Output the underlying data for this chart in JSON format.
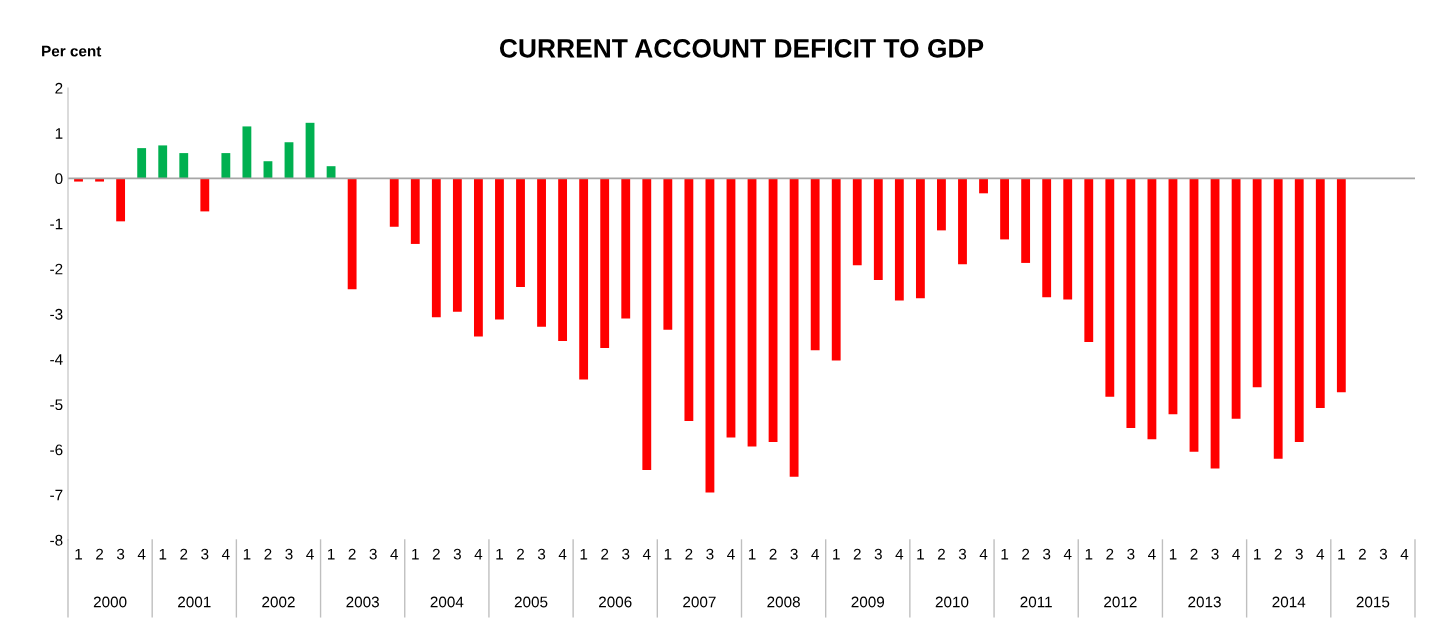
{
  "chart_data": {
    "type": "bar",
    "title": "CURRENT ACCOUNT DEFICIT TO GDP",
    "ylabel": "Per cent",
    "categories": [
      "1",
      "2",
      "3",
      "4",
      "1",
      "2",
      "3",
      "4",
      "1",
      "2",
      "3",
      "4",
      "1",
      "2",
      "3",
      "4",
      "1",
      "2",
      "3",
      "4",
      "1",
      "2",
      "3",
      "4",
      "1",
      "2",
      "3",
      "4",
      "1",
      "2",
      "3",
      "4",
      "1",
      "2",
      "3",
      "4",
      "1",
      "2",
      "3",
      "4",
      "1",
      "2",
      "3",
      "4",
      "1",
      "2",
      "3",
      "4",
      "1",
      "2",
      "3",
      "4",
      "1",
      "2",
      "3",
      "4",
      "1",
      "2",
      "3",
      "4",
      "1",
      "2",
      "3",
      "4"
    ],
    "annotations": [
      "2000",
      "2001",
      "2002",
      "2003",
      "2004",
      "2005",
      "2006",
      "2007",
      "2008",
      "2009",
      "2010",
      "2011",
      "2012",
      "2013",
      "2014",
      "2015"
    ],
    "values": [
      -0.07,
      -0.07,
      -0.95,
      0.67,
      0.73,
      0.56,
      -0.73,
      0.56,
      1.15,
      0.38,
      0.8,
      1.23,
      0.27,
      -2.45,
      null,
      -1.07,
      -1.45,
      -3.07,
      -2.95,
      -3.5,
      -3.12,
      -2.4,
      -3.28,
      -3.6,
      -4.45,
      -3.75,
      -3.1,
      -6.45,
      -3.35,
      -5.37,
      -6.95,
      -5.73,
      -5.93,
      -5.83,
      -6.6,
      -3.8,
      -4.03,
      -1.92,
      -2.25,
      -2.7,
      -2.65,
      -1.15,
      -1.9,
      -0.33,
      -1.35,
      -1.87,
      -2.63,
      -2.68,
      -3.62,
      -4.83,
      -5.52,
      -5.77,
      -5.22,
      -6.05,
      -6.42,
      -5.32,
      -4.62,
      -6.2,
      -5.83,
      -5.08,
      -4.73,
      null,
      null,
      null
    ],
    "colors": [
      "#ff0000",
      "#ff0000",
      "#ff0000",
      "#00b050",
      "#00b050",
      "#00b050",
      "#ff0000",
      "#00b050",
      "#00b050",
      "#00b050",
      "#00b050",
      "#00b050",
      "#00b050",
      "#ff0000",
      "#ff0000",
      "#ff0000",
      "#ff0000",
      "#ff0000",
      "#ff0000",
      "#ff0000",
      "#ff0000",
      "#ff0000",
      "#ff0000",
      "#ff0000",
      "#ff0000",
      "#ff0000",
      "#ff0000",
      "#ff0000",
      "#ff0000",
      "#ff0000",
      "#ff0000",
      "#ff0000",
      "#ff0000",
      "#ff0000",
      "#ff0000",
      "#ff0000",
      "#ff0000",
      "#ff0000",
      "#ff0000",
      "#ff0000",
      "#ff0000",
      "#ff0000",
      "#ff0000",
      "#ff0000",
      "#ff0000",
      "#ff0000",
      "#ff0000",
      "#ff0000",
      "#ff0000",
      "#ff0000",
      "#ff0000",
      "#ff0000",
      "#ff0000",
      "#ff0000",
      "#ff0000",
      "#ff0000",
      "#ff0000",
      "#ff0000",
      "#ff0000",
      "#ff0000",
      "#ff0000",
      "#ff0000",
      "#ff0000",
      "#ff0000"
    ],
    "ylim": [
      -8,
      2
    ],
    "yticks": [
      -8,
      -7,
      -6,
      -5,
      -4,
      -3,
      -2,
      -1,
      0,
      1,
      2
    ],
    "grid": false,
    "ref_lines": [
      {
        "axis": "y",
        "value": 0,
        "color": "#a6a6a6",
        "line_style": "solid"
      }
    ]
  }
}
